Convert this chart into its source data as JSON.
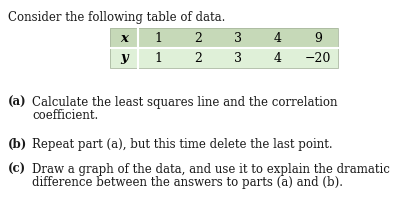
{
  "title": "Consider the following table of data.",
  "table": {
    "x_label": "x",
    "y_label": "y",
    "x_values": [
      "1",
      "2",
      "3",
      "4",
      "9"
    ],
    "y_values": [
      "1",
      "2",
      "3",
      "4",
      "−20"
    ],
    "header_bg": "#c6d9b8",
    "row_bg": "#dff0d8",
    "divider_color": "#ffffff"
  },
  "parts": [
    {
      "label": "(a)",
      "line1": "Calculate the least squares line and the correlation",
      "line2": "coefficient."
    },
    {
      "label": "(b)",
      "line1": "Repeat part (a), but this time delete the last point.",
      "line2": null
    },
    {
      "label": "(c)",
      "line1": "Draw a graph of the data, and use it to explain the dramatic",
      "line2": "difference between the answers to parts (a) and (b)."
    }
  ],
  "bg_color": "#ffffff",
  "text_color": "#1a1a1a",
  "font_size": 8.5,
  "title_font_size": 8.5
}
